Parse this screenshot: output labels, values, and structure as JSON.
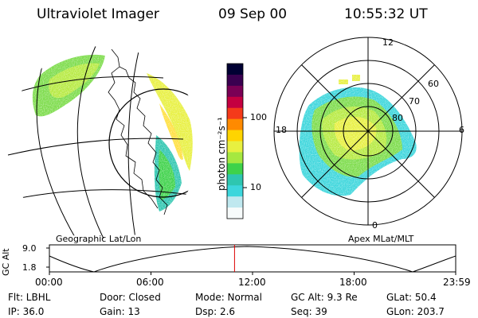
{
  "header": {
    "instrument": "Ultraviolet Imager",
    "date": "09 Sep 00",
    "time": "10:55:32 UT"
  },
  "colorbar": {
    "label": "photon cm⁻²s⁻¹",
    "ticks": [
      "100",
      "10"
    ],
    "colors": [
      "#000033",
      "#3a0050",
      "#7a0055",
      "#c40040",
      "#f43a1a",
      "#ff8a00",
      "#ffd400",
      "#e8f040",
      "#a6e840",
      "#3ed24a",
      "#2ec6b0",
      "#3cd6dc",
      "#bfe8ef",
      "#f7fbfb"
    ]
  },
  "map_labels": {
    "left": "Geographic Lat/Lon",
    "right": "Apex MLat/MLT"
  },
  "polar": {
    "mlt_labels": [
      "12",
      "18",
      "6",
      "0"
    ],
    "lat_labels": [
      "60",
      "70",
      "80"
    ]
  },
  "orbit": {
    "axis_label": "GC Alt",
    "y_ticks": [
      "9.0",
      "1.8"
    ],
    "x_ticks": [
      "00:00",
      "06:00",
      "12:00",
      "18:00",
      "23:59"
    ],
    "current_time_fraction": 0.4556,
    "marker_color": "#dd0000"
  },
  "info": {
    "flt": "Flt: LBHL",
    "door": "Door: Closed",
    "mode": "Mode: Normal",
    "gcalt": "GC Alt: 9.3 Re",
    "glat": "GLat:  50.4",
    "ip": "IP: 36.0",
    "gain": "Gain: 13",
    "dsp": "Dsp:    2.6",
    "seq": "Seq: 39",
    "glon": "GLon: 203.7"
  }
}
